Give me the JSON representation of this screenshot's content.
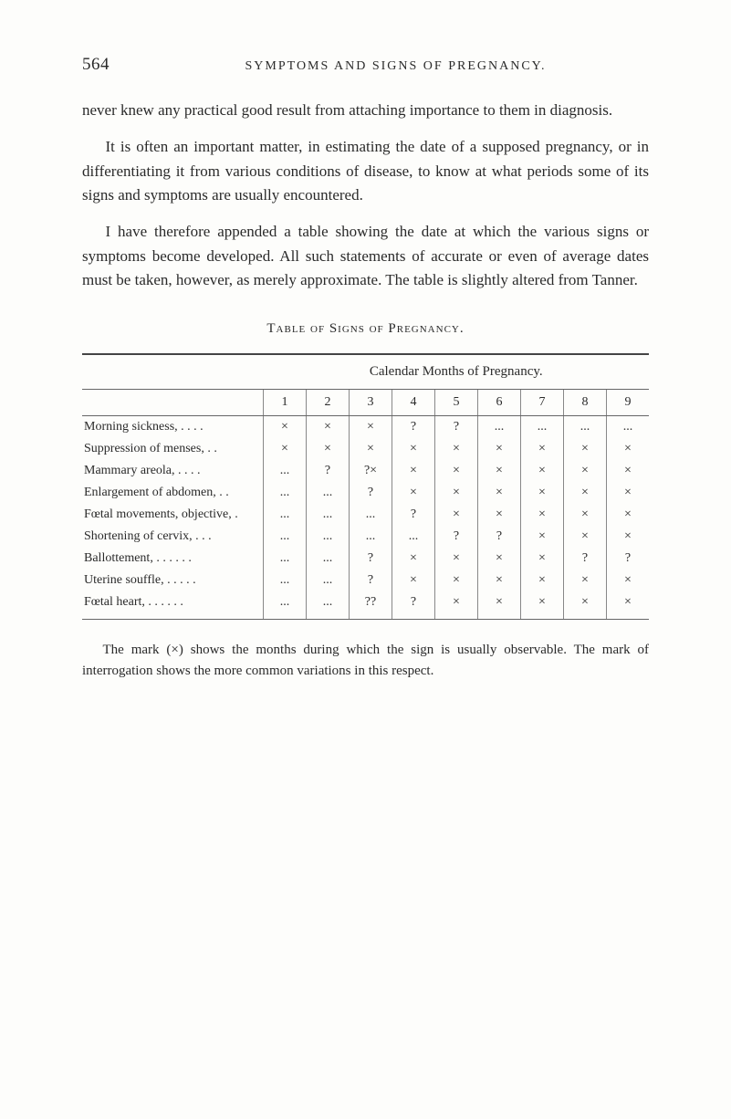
{
  "page_number": "564",
  "running_title": "SYMPTOMS AND SIGNS OF PREGNANCY.",
  "paragraphs": [
    "never knew any practical good result from attaching importance to them in diagnosis.",
    "It is often an important matter, in estimating the date of a supposed pregnancy, or in differentiating it from various conditions of disease, to know at what periods some of its signs and symptoms are usually encountered.",
    "I have therefore appended a table showing the date at which the various signs or symptoms become developed. All such statements of accurate or even of average dates must be taken, however, as merely approximate. The table is slightly altered from Tanner."
  ],
  "table_caption": "Table of Signs of Pregnancy.",
  "table": {
    "super_header": "Calendar Months of Pregnancy.",
    "columns": [
      "1",
      "2",
      "3",
      "4",
      "5",
      "6",
      "7",
      "8",
      "9"
    ],
    "rows": [
      {
        "label": "Morning sickness, .    .    .    .",
        "cells": [
          "×",
          "×",
          "×",
          "?",
          "?",
          "...",
          "...",
          "...",
          "..."
        ]
      },
      {
        "label": "Suppression of menses,    .    .",
        "cells": [
          "×",
          "×",
          "×",
          "×",
          "×",
          "×",
          "×",
          "×",
          "×"
        ]
      },
      {
        "label": "Mammary areola,    .    .    .    .",
        "cells": [
          "...",
          "?",
          "?×",
          "×",
          "×",
          "×",
          "×",
          "×",
          "×"
        ]
      },
      {
        "label": "Enlargement of abdomen,   .  .",
        "cells": [
          "...",
          "...",
          "?",
          "×",
          "×",
          "×",
          "×",
          "×",
          "×"
        ]
      },
      {
        "label": "Fœtal movements, objective, .",
        "cells": [
          "...",
          "...",
          "...",
          "?",
          "×",
          "×",
          "×",
          "×",
          "×"
        ]
      },
      {
        "label": "Shortening of cervix,    .    .    .",
        "cells": [
          "...",
          "...",
          "...",
          "...",
          "?",
          "?",
          "×",
          "×",
          "×"
        ]
      },
      {
        "label": "Ballottement, .    .    .    .    .    .",
        "cells": [
          "...",
          "...",
          "?",
          "×",
          "×",
          "×",
          "×",
          "?",
          "?"
        ]
      },
      {
        "label": "Uterine souffle,    .    .    .    .    .",
        "cells": [
          "...",
          "...",
          "?",
          "×",
          "×",
          "×",
          "×",
          "×",
          "×"
        ]
      },
      {
        "label": "Fœtal heart, .    .    .    .    .    .",
        "cells": [
          "...",
          "...",
          "??",
          "?",
          "×",
          "×",
          "×",
          "×",
          "×"
        ]
      }
    ]
  },
  "footnote": "The mark (×) shows the months during which the sign is usually observable. The mark of interrogation shows the more common variations in this respect."
}
